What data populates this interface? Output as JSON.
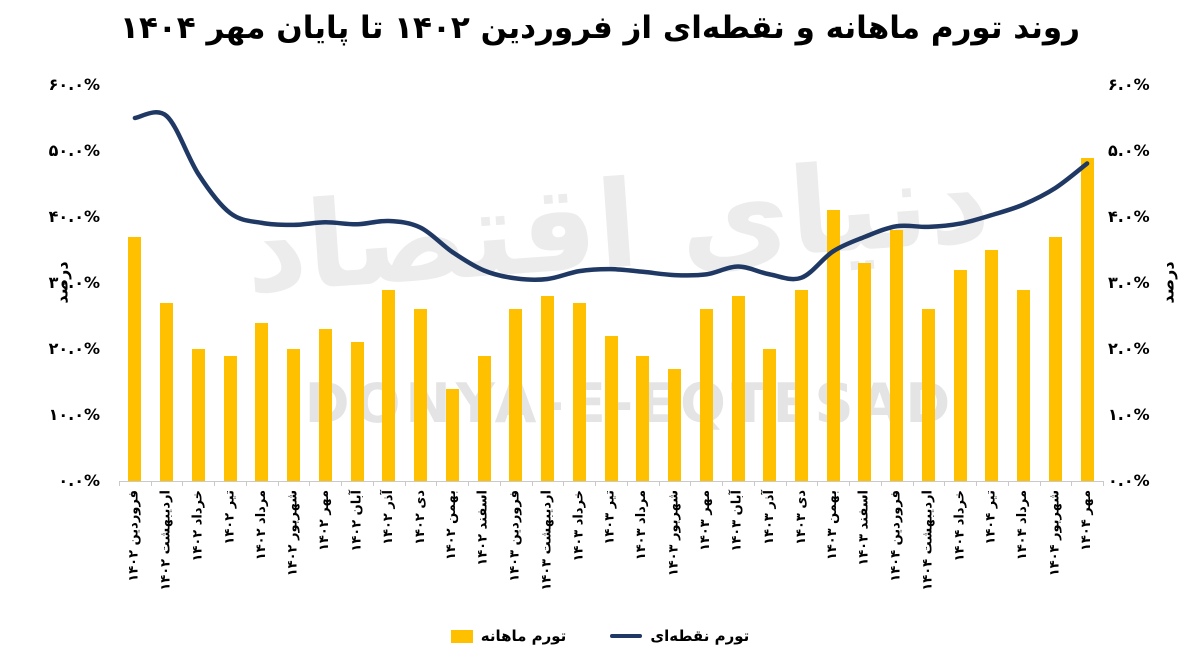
{
  "title": "روند تورم ماهانه و نقطه‌ای از فروردین ۱۴۰۲ تا پایان مهر ۱۴۰۴",
  "watermark": {
    "persian": "دنیای اقتصاد",
    "latin": "DONYA-E-EQTESAD"
  },
  "legend": {
    "bar_label": "تورم ماهانه",
    "line_label": "تورم نقطه‌ای"
  },
  "axes": {
    "left_title": "درصد",
    "right_title": "درصد",
    "left_ticks": [
      "۶۰.۰%",
      "۵۰.۰%",
      "۴۰.۰%",
      "۳۰.۰%",
      "۲۰.۰%",
      "۱۰.۰%",
      "۰.۰%"
    ],
    "right_ticks": [
      "۶.۰%",
      "۵.۰%",
      "۴.۰%",
      "۳.۰%",
      "۲.۰%",
      "۱.۰%",
      "۰.۰%"
    ]
  },
  "colors": {
    "bar": "#FFC000",
    "line": "#1F3864",
    "axis_gray": "#c9c9c9",
    "text": "#000000"
  },
  "chart_data": {
    "type": "combo-bar-line",
    "title": "روند تورم ماهانه و نقطه‌ای از فروردین ۱۴۰۲ تا پایان مهر ۱۴۰۴",
    "categories": [
      "فروردین ۱۴۰۲",
      "اردیبهشت ۱۴۰۲",
      "خرداد ۱۴۰۲",
      "تیر ۱۴۰۲",
      "مرداد ۱۴۰۲",
      "شهریور ۱۴۰۲",
      "مهر ۱۴۰۲",
      "آبان ۱۴۰۲",
      "آذر ۱۴۰۲",
      "دی ۱۴۰۲",
      "بهمن ۱۴۰۲",
      "اسفند ۱۴۰۲",
      "فروردین ۱۴۰۳",
      "اردیبهشت ۱۴۰۳",
      "خرداد ۱۴۰۳",
      "تیر ۱۴۰۳",
      "مرداد ۱۴۰۳",
      "شهریور ۱۴۰۳",
      "مهر ۱۴۰۳",
      "آبان ۱۴۰۳",
      "آذر ۱۴۰۳",
      "دی ۱۴۰۳",
      "بهمن ۱۴۰۳",
      "اسفند ۱۴۰۳",
      "فروردین ۱۴۰۴",
      "اردیبهشت ۱۴۰۴",
      "خرداد ۱۴۰۴",
      "تیر ۱۴۰۴",
      "مرداد ۱۴۰۴",
      "شهریور ۱۴۰۴",
      "مهر ۱۴۰۴"
    ],
    "series": [
      {
        "name": "تورم ماهانه",
        "type": "bar",
        "axis": "right",
        "color": "#FFC000",
        "values": [
          3.7,
          2.7,
          2.0,
          1.9,
          2.4,
          2.0,
          2.3,
          2.1,
          2.9,
          2.6,
          1.4,
          1.9,
          2.6,
          2.8,
          2.7,
          2.2,
          1.9,
          1.7,
          2.6,
          2.8,
          2.0,
          2.9,
          4.1,
          3.3,
          3.8,
          2.6,
          3.2,
          3.5,
          2.9,
          3.7,
          4.9
        ]
      },
      {
        "name": "تورم نقطه‌ای",
        "type": "line",
        "axis": "left",
        "color": "#1F3864",
        "smooth": true,
        "values": [
          55.0,
          55.3,
          46.5,
          40.6,
          39.1,
          38.8,
          39.2,
          38.9,
          39.4,
          38.4,
          34.7,
          31.9,
          30.7,
          30.6,
          31.8,
          32.1,
          31.7,
          31.2,
          31.3,
          32.5,
          31.3,
          30.8,
          34.8,
          37.0,
          38.6,
          38.5,
          39.0,
          40.3,
          41.9,
          44.4,
          48.1
        ]
      }
    ],
    "left_ylim": [
      0,
      60
    ],
    "right_ylim": [
      0,
      6
    ],
    "ylabel_left": "درصد",
    "ylabel_right": "درصد",
    "grid": false,
    "legend_position": "bottom"
  }
}
